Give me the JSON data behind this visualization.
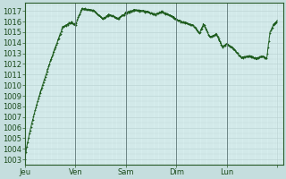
{
  "background_color": "#c5dede",
  "plot_bg_color": "#d6eded",
  "grid_color": "#b8d0d0",
  "line_color": "#1e5c1e",
  "marker_color": "#1e5c1e",
  "ylim_min": 1002.5,
  "ylim_max": 1017.8,
  "yticks": [
    1003,
    1004,
    1005,
    1006,
    1007,
    1008,
    1009,
    1010,
    1011,
    1012,
    1013,
    1014,
    1015,
    1016,
    1017
  ],
  "xtick_labels": [
    "Jeu",
    "Ven",
    "Sam",
    "Dim",
    "Lun",
    ""
  ],
  "xtick_positions": [
    0,
    24,
    48,
    72,
    96,
    120
  ],
  "xlim_min": 0,
  "xlim_max": 123,
  "tick_fontsize": 6.0,
  "vline_color": "#607878",
  "spine_color": "#2a5c2a"
}
